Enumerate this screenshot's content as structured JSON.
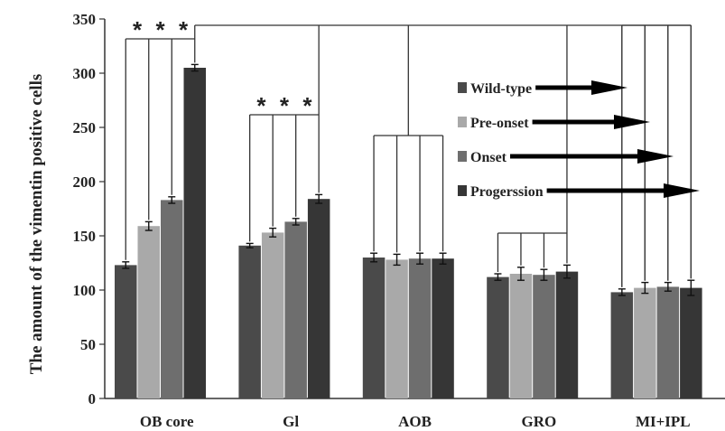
{
  "chart_data": {
    "type": "bar",
    "title": "",
    "xlabel": "",
    "ylabel": "The amount of the vimentin positive cells",
    "ylim": [
      0,
      350
    ],
    "yticks": [
      0,
      50,
      100,
      150,
      200,
      250,
      300,
      350
    ],
    "categories": [
      "OB core",
      "Gl",
      "AOB",
      "GRO",
      "MI+IPL"
    ],
    "legend_position": "top-right",
    "grid": false,
    "series": [
      {
        "name": "Wild-type",
        "color": "#4a4a4a",
        "values": [
          123,
          141,
          130,
          112,
          98
        ],
        "errors": [
          3,
          2,
          4,
          3,
          3
        ]
      },
      {
        "name": "Pre-onset",
        "color": "#a9a9a9",
        "values": [
          159,
          153,
          128,
          115,
          102
        ],
        "errors": [
          4,
          4,
          5,
          6,
          5
        ]
      },
      {
        "name": "Onset",
        "color": "#6e6e6e",
        "values": [
          183,
          163,
          129,
          114,
          103
        ],
        "errors": [
          3,
          3,
          5,
          5,
          4
        ]
      },
      {
        "name": "Progerssion",
        "color": "#363636",
        "values": [
          305,
          184,
          129,
          117,
          102
        ],
        "errors": [
          3,
          4,
          5,
          6,
          7
        ]
      }
    ],
    "significance": [
      {
        "category": "OB core",
        "label": "*"
      },
      {
        "category": "Gl",
        "label": "*"
      }
    ]
  }
}
